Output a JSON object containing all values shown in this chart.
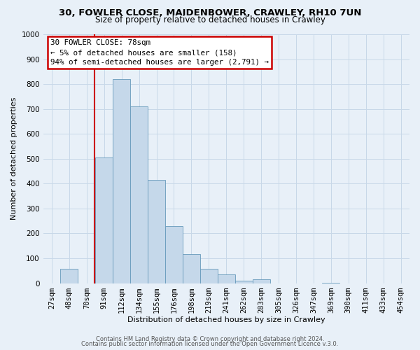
{
  "title": "30, FOWLER CLOSE, MAIDENBOWER, CRAWLEY, RH10 7UN",
  "subtitle": "Size of property relative to detached houses in Crawley",
  "xlabel": "Distribution of detached houses by size in Crawley",
  "ylabel": "Number of detached properties",
  "bar_labels": [
    "27sqm",
    "48sqm",
    "70sqm",
    "91sqm",
    "112sqm",
    "134sqm",
    "155sqm",
    "176sqm",
    "198sqm",
    "219sqm",
    "241sqm",
    "262sqm",
    "283sqm",
    "305sqm",
    "326sqm",
    "347sqm",
    "369sqm",
    "390sqm",
    "411sqm",
    "433sqm",
    "454sqm"
  ],
  "bar_values": [
    0,
    57,
    0,
    505,
    820,
    710,
    415,
    230,
    118,
    57,
    35,
    10,
    15,
    0,
    0,
    0,
    3,
    0,
    0,
    0,
    0
  ],
  "bar_color": "#c5d8ea",
  "bar_edge_color": "#6699bb",
  "annotation_title": "30 FOWLER CLOSE: 78sqm",
  "annotation_line1": "← 5% of detached houses are smaller (158)",
  "annotation_line2": "94% of semi-detached houses are larger (2,791) →",
  "annotation_box_color": "#ffffff",
  "annotation_box_edge": "#cc0000",
  "property_line_color": "#cc0000",
  "property_line_xindex": 2.43,
  "footer1": "Contains HM Land Registry data © Crown copyright and database right 2024.",
  "footer2": "Contains public sector information licensed under the Open Government Licence v.3.0.",
  "ylim": [
    0,
    1000
  ],
  "yticks": [
    0,
    100,
    200,
    300,
    400,
    500,
    600,
    700,
    800,
    900,
    1000
  ],
  "grid_color": "#c8d8e8",
  "background_color": "#e8f0f8",
  "title_fontsize": 9.5,
  "subtitle_fontsize": 8.5,
  "axis_label_fontsize": 8,
  "tick_fontsize": 7.5
}
